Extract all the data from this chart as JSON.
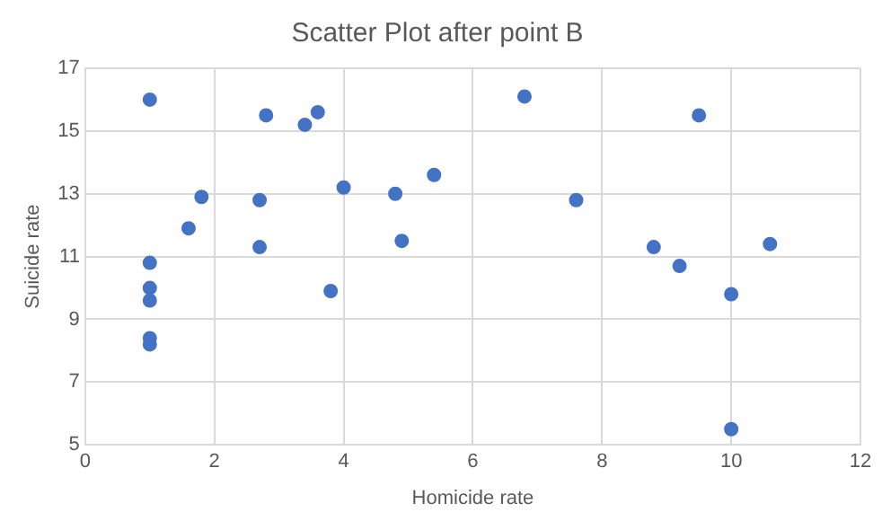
{
  "chart_data": {
    "type": "scatter",
    "title": "Scatter Plot after point B",
    "xlabel": "Homicide rate",
    "ylabel": "Suicide rate",
    "series": [
      {
        "color": "#4472c4",
        "x": [
          1,
          2.8,
          3.4,
          3.6,
          5.4,
          4.0,
          4.8,
          1.8,
          2.7,
          1.6,
          4.9,
          2.7,
          1,
          1,
          1,
          3.8,
          1,
          1,
          6.8,
          9.5,
          7.6,
          8.8,
          9.2,
          10.6,
          10,
          10
        ],
        "values": [
          16.0,
          15.5,
          15.2,
          15.6,
          13.6,
          13.2,
          13.0,
          12.9,
          12.8,
          11.9,
          11.5,
          11.3,
          10.8,
          10.0,
          9.6,
          9.9,
          8.4,
          8.2,
          16.1,
          15.5,
          12.8,
          11.3,
          10.7,
          11.4,
          9.8,
          5.5
        ]
      }
    ],
    "xlim": [
      0,
      12
    ],
    "xticks": [
      0,
      2,
      4,
      6,
      8,
      10,
      12
    ],
    "ylim": [
      5,
      17
    ],
    "yticks": [
      5,
      7,
      9,
      11,
      13,
      15,
      17
    ],
    "grid": true,
    "marker": "circle",
    "legend": false
  }
}
